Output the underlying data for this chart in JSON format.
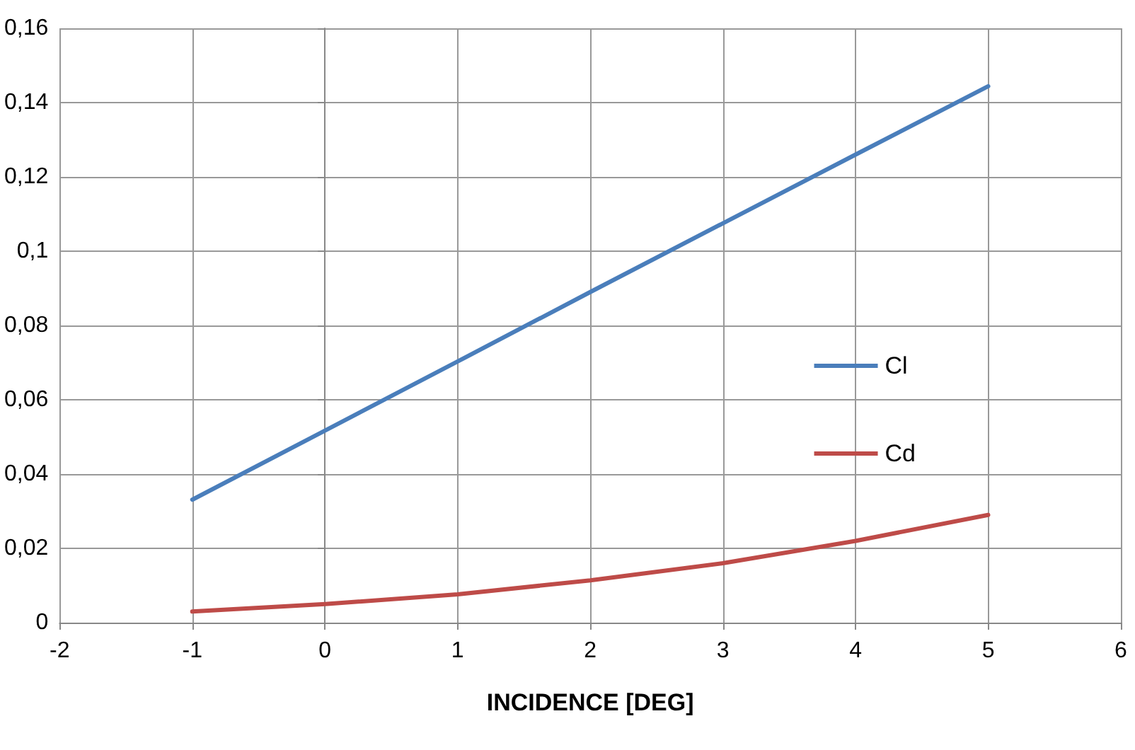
{
  "chart_data": {
    "type": "line",
    "xlabel": "INCIDENCE [DEG]",
    "x": [
      -1,
      0,
      1,
      2,
      3,
      4,
      5
    ],
    "series": [
      {
        "name": "Cl",
        "color": "#4a7ebb",
        "values": [
          0.0331,
          0.0517,
          0.0703,
          0.089,
          0.1075,
          0.126,
          0.1444
        ]
      },
      {
        "name": "Cd",
        "color": "#be4b48",
        "values": [
          0.003,
          0.005,
          0.0076,
          0.0114,
          0.016,
          0.022,
          0.029
        ]
      }
    ],
    "xlim": [
      -2,
      6
    ],
    "xticks": [
      -2,
      -1,
      0,
      1,
      2,
      3,
      4,
      5,
      6
    ],
    "ylim": [
      0,
      0.16
    ],
    "yticks": [
      {
        "value": 0,
        "label": "0"
      },
      {
        "value": 0.02,
        "label": "0,02"
      },
      {
        "value": 0.04,
        "label": "0,04"
      },
      {
        "value": 0.06,
        "label": "0,06"
      },
      {
        "value": 0.08,
        "label": "0,08"
      },
      {
        "value": 0.1,
        "label": "0,1"
      },
      {
        "value": 0.12,
        "label": "0,12"
      },
      {
        "value": 0.14,
        "label": "0,14"
      },
      {
        "value": 0.16,
        "label": "0,16"
      }
    ],
    "grid": true,
    "legend": "right",
    "marker": "none",
    "line_style": "solid"
  }
}
